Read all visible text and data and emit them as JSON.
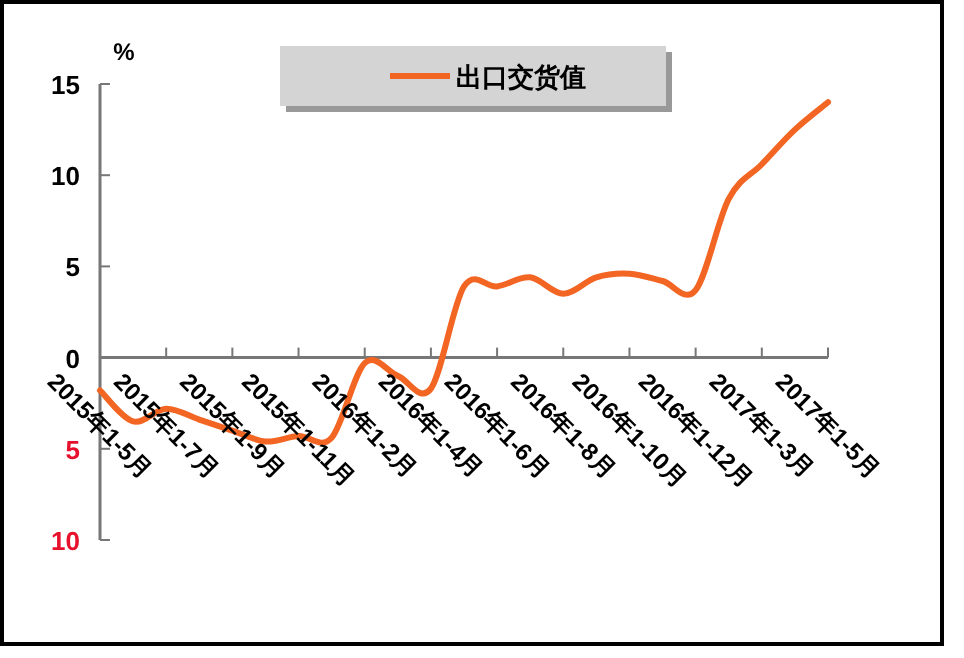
{
  "chart_data": {
    "type": "line",
    "ylabel": "%",
    "categories": [
      "2015年1-5月",
      null,
      "2015年1-7月",
      null,
      "2015年1-9月",
      null,
      "2015年1-11月",
      null,
      "2016年1-2月",
      null,
      "2016年1-4月",
      null,
      "2016年1-6月",
      null,
      "2016年1-8月",
      null,
      "2016年1-10月",
      null,
      "2016年1-12月",
      null,
      "2017年1-3月",
      null,
      "2017年1-5月"
    ],
    "series": [
      {
        "name": "出口交货值",
        "color": "#f26522",
        "values": [
          -1.8,
          -3.5,
          -2.8,
          -3.4,
          -4.0,
          -4.6,
          -4.3,
          -4.4,
          -0.3,
          -1.0,
          -1.7,
          3.9,
          3.9,
          4.4,
          3.5,
          4.4,
          4.6,
          4.2,
          3.7,
          8.7,
          10.6,
          12.5,
          14.0
        ]
      }
    ],
    "ylim": [
      -10,
      15
    ],
    "yticks": [
      {
        "value": -10,
        "label": "10"
      },
      {
        "value": -5,
        "label": "5"
      },
      0,
      5,
      10,
      15
    ],
    "legend": "top",
    "grid": false,
    "marker": "none"
  }
}
